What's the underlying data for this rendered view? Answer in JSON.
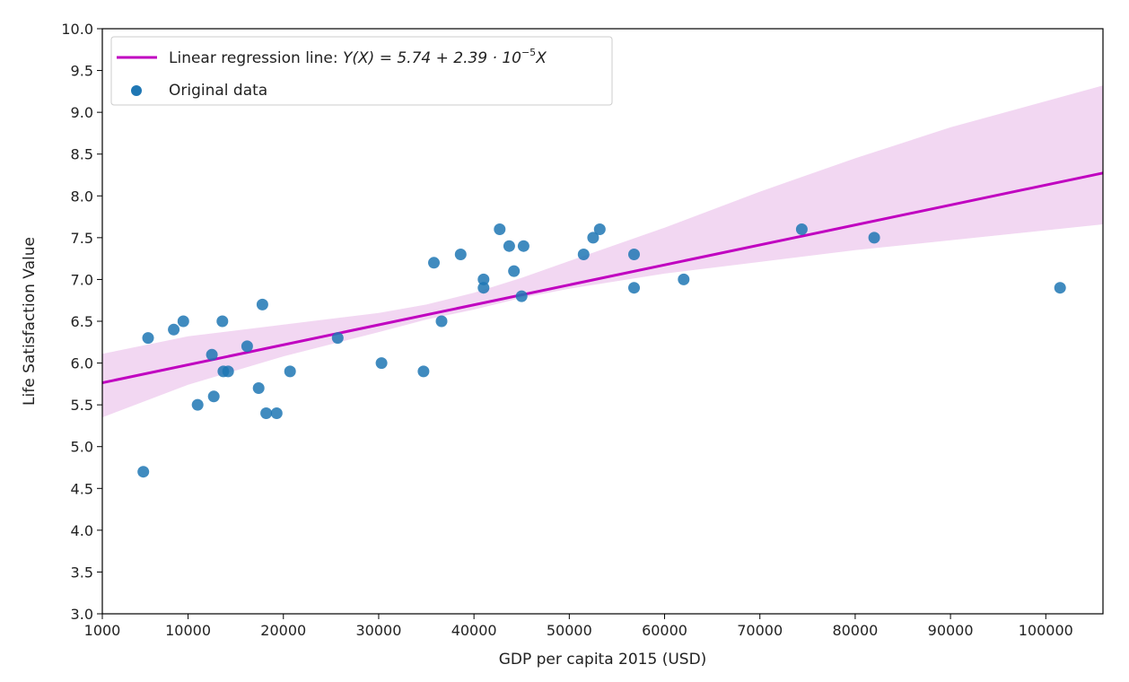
{
  "chart_data": {
    "type": "scatter",
    "title": "",
    "xlabel": "GDP per capita 2015 (USD)",
    "ylabel": "Life Satisfaction Value",
    "xlim": [
      1000,
      106000
    ],
    "ylim": [
      3.0,
      10.0
    ],
    "xticks": [
      1000,
      10000,
      20000,
      30000,
      40000,
      50000,
      60000,
      70000,
      80000,
      90000,
      100000
    ],
    "yticks": [
      3.0,
      3.5,
      4.0,
      4.5,
      5.0,
      5.5,
      6.0,
      6.5,
      7.0,
      7.5,
      8.0,
      8.5,
      9.0,
      9.5,
      10.0
    ],
    "grid": false,
    "legend_position": "top-left",
    "series": [
      {
        "name": "Original data",
        "kind": "scatter",
        "color": "#1f77b4",
        "points": [
          [
            5300,
            4.7
          ],
          [
            5800,
            6.3
          ],
          [
            8500,
            6.4
          ],
          [
            9500,
            6.5
          ],
          [
            11000,
            5.5
          ],
          [
            12500,
            6.1
          ],
          [
            12700,
            5.6
          ],
          [
            13600,
            6.5
          ],
          [
            13700,
            5.9
          ],
          [
            14200,
            5.9
          ],
          [
            16200,
            6.2
          ],
          [
            17400,
            5.7
          ],
          [
            17800,
            6.7
          ],
          [
            18200,
            5.4
          ],
          [
            19300,
            5.4
          ],
          [
            20700,
            5.9
          ],
          [
            25700,
            6.3
          ],
          [
            30300,
            6.0
          ],
          [
            34700,
            5.9
          ],
          [
            35800,
            7.2
          ],
          [
            36600,
            6.5
          ],
          [
            38600,
            7.3
          ],
          [
            41000,
            7.0
          ],
          [
            41000,
            6.9
          ],
          [
            42700,
            7.6
          ],
          [
            43700,
            7.4
          ],
          [
            44200,
            7.1
          ],
          [
            45000,
            6.8
          ],
          [
            45200,
            7.4
          ],
          [
            51500,
            7.3
          ],
          [
            52500,
            7.5
          ],
          [
            53200,
            7.6
          ],
          [
            56800,
            7.3
          ],
          [
            56800,
            6.9
          ],
          [
            62000,
            7.0
          ],
          [
            74400,
            7.6
          ],
          [
            82000,
            7.5
          ],
          [
            101500,
            6.9
          ]
        ]
      },
      {
        "name": "Linear regression line: ",
        "name_formula": "Y(X) = 5.74 + 2.39 · 10",
        "name_formula_exponent": "−5",
        "name_formula_tail": "X",
        "kind": "line",
        "color": "#c000c0",
        "intercept": 5.74,
        "slope": 2.39e-05
      }
    ],
    "confidence_band": {
      "color": "#f2d7f2",
      "x": [
        1000,
        10000,
        20000,
        30000,
        35000,
        40000,
        45000,
        50000,
        60000,
        70000,
        80000,
        90000,
        106000
      ],
      "lower": [
        5.35,
        5.74,
        6.08,
        6.37,
        6.52,
        6.64,
        6.78,
        6.89,
        7.07,
        7.21,
        7.35,
        7.47,
        7.66
      ],
      "upper": [
        6.11,
        6.32,
        6.46,
        6.6,
        6.7,
        6.84,
        7.02,
        7.22,
        7.62,
        8.05,
        8.45,
        8.82,
        9.32
      ]
    }
  }
}
